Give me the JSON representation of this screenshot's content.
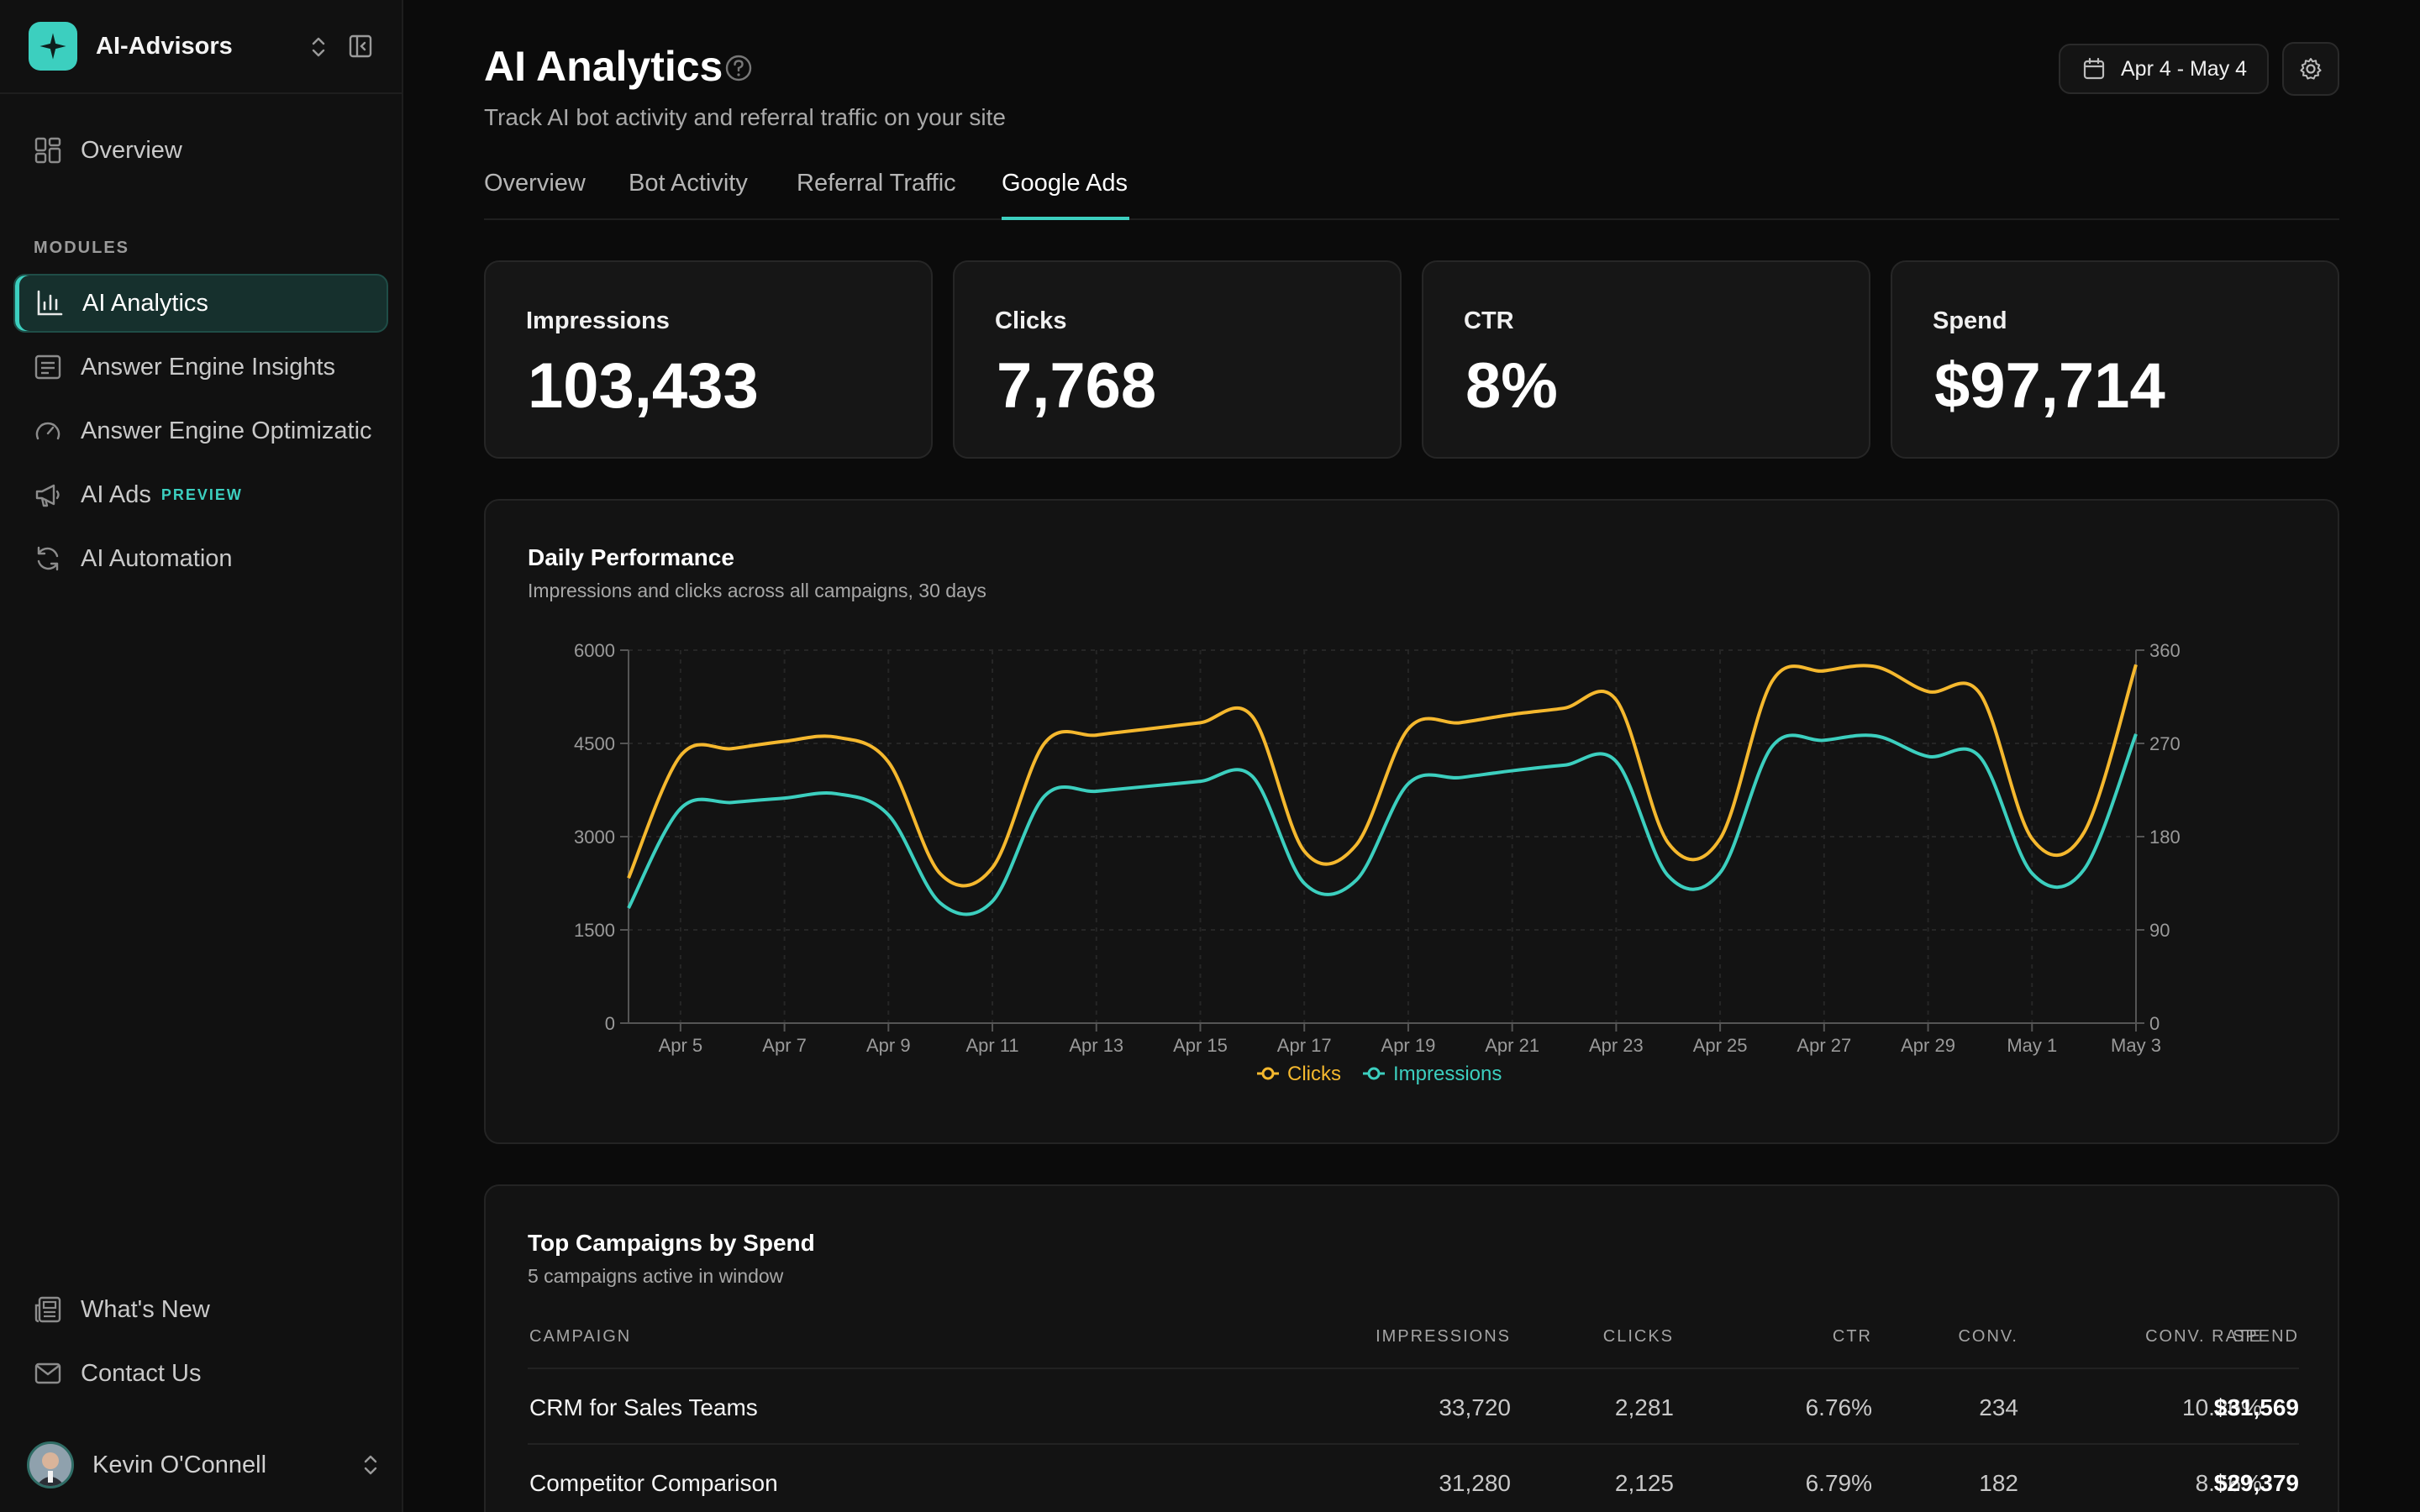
{
  "sidebar": {
    "brand": "AI-Advisors",
    "overview_label": "Overview",
    "modules_label": "MODULES",
    "items": [
      {
        "label": "AI Analytics",
        "icon": "bar-chart-icon"
      },
      {
        "label": "Answer Engine Insights",
        "icon": "list-icon"
      },
      {
        "label": "Answer Engine Optimizatic",
        "icon": "gauge-icon"
      },
      {
        "label": "AI Ads",
        "icon": "megaphone-icon",
        "badge": "PREVIEW"
      },
      {
        "label": "AI Automation",
        "icon": "refresh-icon"
      }
    ],
    "whats_new": "What's New",
    "contact": "Contact Us",
    "user_name": "Kevin O'Connell"
  },
  "header": {
    "title": "AI Analytics",
    "subtitle": "Track AI bot activity and referral traffic on your site",
    "date_range": "Apr 4 - May 4"
  },
  "tabs": [
    {
      "label": "Overview"
    },
    {
      "label": "Bot Activity"
    },
    {
      "label": "Referral Traffic"
    },
    {
      "label": "Google Ads",
      "active": true
    }
  ],
  "kpis": [
    {
      "label": "Impressions",
      "value": "103,433"
    },
    {
      "label": "Clicks",
      "value": "7,768"
    },
    {
      "label": "CTR",
      "value": "8%"
    },
    {
      "label": "Spend",
      "value": "$97,714"
    }
  ],
  "chart_data": {
    "type": "line",
    "title": "Daily Performance",
    "subtitle": "Impressions and clicks across all campaigns, 30 days",
    "x": [
      "Apr 4",
      "Apr 5",
      "Apr 6",
      "Apr 7",
      "Apr 8",
      "Apr 9",
      "Apr 10",
      "Apr 11",
      "Apr 12",
      "Apr 13",
      "Apr 14",
      "Apr 15",
      "Apr 16",
      "Apr 17",
      "Apr 18",
      "Apr 19",
      "Apr 20",
      "Apr 21",
      "Apr 22",
      "Apr 23",
      "Apr 24",
      "Apr 25",
      "Apr 26",
      "Apr 27",
      "Apr 28",
      "Apr 29",
      "Apr 30",
      "May 1",
      "May 2",
      "May 3"
    ],
    "x_tick_labels": [
      "Apr 5",
      "Apr 7",
      "Apr 9",
      "Apr 11",
      "Apr 13",
      "Apr 15",
      "Apr 17",
      "Apr 19",
      "Apr 21",
      "Apr 23",
      "Apr 25",
      "Apr 27",
      "Apr 29",
      "May 1",
      "May 3"
    ],
    "y_left": {
      "ticks": [
        "0",
        "1500",
        "3000",
        "4500",
        "6000"
      ],
      "range": [
        0,
        6000
      ]
    },
    "y_right": {
      "ticks": [
        "0",
        "90",
        "180",
        "270",
        "360"
      ],
      "range": [
        0,
        360
      ]
    },
    "series": [
      {
        "name": "Clicks",
        "axis": "right",
        "color": "#f5b82e",
        "values": [
          140,
          258,
          265,
          272,
          276,
          252,
          144,
          150,
          270,
          278,
          284,
          290,
          296,
          166,
          172,
          284,
          290,
          298,
          304,
          312,
          174,
          178,
          330,
          340,
          344,
          320,
          318,
          178,
          184,
          346
        ]
      },
      {
        "name": "Impressions",
        "axis": "left",
        "color": "#3ccfbf",
        "values": [
          1850,
          3450,
          3550,
          3620,
          3690,
          3350,
          1930,
          1960,
          3650,
          3730,
          3810,
          3890,
          3970,
          2250,
          2300,
          3850,
          3950,
          4060,
          4150,
          4210,
          2370,
          2420,
          4450,
          4550,
          4620,
          4290,
          4280,
          2410,
          2470,
          4650
        ]
      }
    ],
    "legend": "bottom",
    "grid": true
  },
  "table": {
    "title": "Top Campaigns by Spend",
    "subtitle": "5 campaigns active in window",
    "columns": [
      "CAMPAIGN",
      "IMPRESSIONS",
      "CLICKS",
      "CTR",
      "CONV.",
      "CONV. RATE",
      "SPEND"
    ],
    "rows": [
      [
        "CRM for Sales Teams",
        "33,720",
        "2,281",
        "6.76%",
        "234",
        "10.26%",
        "$31,569"
      ],
      [
        "Competitor Comparison",
        "31,280",
        "2,125",
        "6.79%",
        "182",
        "8.56%",
        "$29,379"
      ]
    ]
  }
}
